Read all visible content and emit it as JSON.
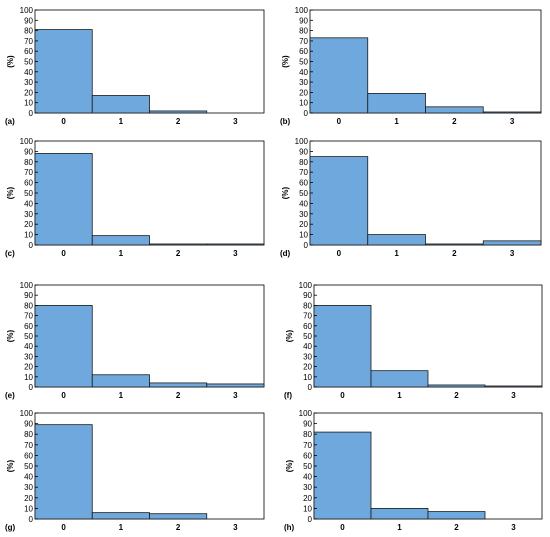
{
  "figure": {
    "bar_fill": "#6fa8dc",
    "bar_stroke": "#1a1a1a"
  },
  "chart_data": [
    {
      "type": "bar",
      "panel_label": "(a)",
      "ylabel": "(%)",
      "categories": [
        "0",
        "1",
        "2",
        "3"
      ],
      "values": [
        81,
        17,
        2,
        0
      ],
      "ylim": [
        0,
        100
      ],
      "yticks": [
        0,
        10,
        20,
        30,
        40,
        50,
        60,
        70,
        80,
        90,
        100
      ],
      "grid": false,
      "legend": "none"
    },
    {
      "type": "bar",
      "panel_label": "(b)",
      "ylabel": "(%)",
      "categories": [
        "0",
        "1",
        "2",
        "3"
      ],
      "values": [
        73,
        19,
        6,
        1
      ],
      "ylim": [
        0,
        100
      ],
      "yticks": [
        0,
        10,
        20,
        30,
        40,
        50,
        60,
        70,
        80,
        90,
        100
      ],
      "grid": false,
      "legend": "none"
    },
    {
      "type": "bar",
      "panel_label": "(c)",
      "ylabel": "(%)",
      "categories": [
        "0",
        "1",
        "2",
        "3"
      ],
      "values": [
        88,
        9,
        1,
        1
      ],
      "ylim": [
        0,
        100
      ],
      "yticks": [
        0,
        10,
        20,
        30,
        40,
        50,
        60,
        70,
        80,
        90,
        100
      ],
      "grid": false,
      "legend": "none"
    },
    {
      "type": "bar",
      "panel_label": "(d)",
      "ylabel": "(%)",
      "categories": [
        "0",
        "1",
        "2",
        "3"
      ],
      "values": [
        85,
        10,
        1,
        4
      ],
      "ylim": [
        0,
        100
      ],
      "yticks": [
        0,
        10,
        20,
        30,
        40,
        50,
        60,
        70,
        80,
        90,
        100
      ],
      "grid": false,
      "legend": "none"
    },
    {
      "type": "bar",
      "panel_label": "(e)",
      "ylabel": "(%)",
      "categories": [
        "0",
        "1",
        "2",
        "3"
      ],
      "values": [
        80,
        12,
        4,
        3
      ],
      "ylim": [
        0,
        100
      ],
      "yticks": [
        0,
        10,
        20,
        30,
        40,
        50,
        60,
        70,
        80,
        90,
        100
      ],
      "grid": false,
      "legend": "none"
    },
    {
      "type": "bar",
      "panel_label": "(f)",
      "ylabel": "(%)",
      "categories": [
        "0",
        "1",
        "2",
        "3"
      ],
      "values": [
        80,
        16,
        2,
        1
      ],
      "ylim": [
        0,
        100
      ],
      "yticks": [
        0,
        10,
        20,
        30,
        40,
        50,
        60,
        70,
        80,
        90,
        100
      ],
      "grid": false,
      "legend": "none"
    },
    {
      "type": "bar",
      "panel_label": "(g)",
      "ylabel": "(%)",
      "categories": [
        "0",
        "1",
        "2",
        "3"
      ],
      "values": [
        89,
        6,
        5,
        0
      ],
      "ylim": [
        0,
        100
      ],
      "yticks": [
        0,
        10,
        20,
        30,
        40,
        50,
        60,
        70,
        80,
        90,
        100
      ],
      "grid": false,
      "legend": "none"
    },
    {
      "type": "bar",
      "panel_label": "(h)",
      "ylabel": "(%)",
      "categories": [
        "0",
        "1",
        "2",
        "3"
      ],
      "values": [
        82,
        10,
        7,
        0
      ],
      "ylim": [
        0,
        100
      ],
      "yticks": [
        0,
        10,
        20,
        30,
        40,
        50,
        60,
        70,
        80,
        90,
        100
      ],
      "grid": false,
      "legend": "none"
    }
  ]
}
